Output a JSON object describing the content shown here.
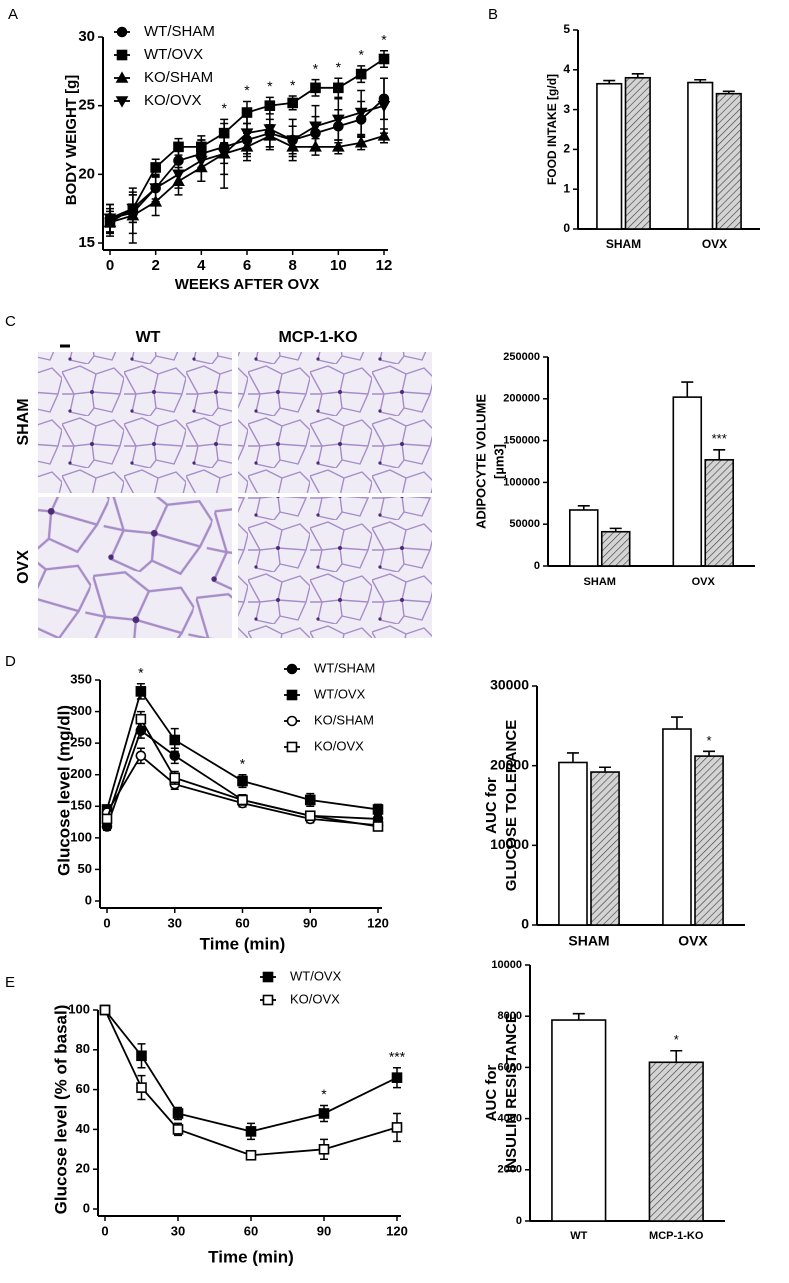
{
  "micrographs": {
    "panel": "C",
    "columns": [
      "WT",
      "MCP-1-KO"
    ],
    "rows": [
      "SHAM",
      "OVX"
    ]
  },
  "chart_data": [
    {
      "type": "line",
      "panel": "A",
      "xlabel": "WEEKS AFTER OVX",
      "ylabel": "BODY WEIGHT [g]",
      "x": [
        0,
        1,
        2,
        3,
        4,
        5,
        6,
        7,
        8,
        9,
        10,
        11,
        12
      ],
      "xlim": [
        0,
        12
      ],
      "xticks": [
        0,
        2,
        4,
        6,
        8,
        10,
        12
      ],
      "ylim": [
        15,
        30
      ],
      "yticks": [
        15,
        20,
        25,
        30
      ],
      "legend": "top-left",
      "annotations": [
        null,
        null,
        null,
        null,
        null,
        "*",
        "*",
        "*",
        "*",
        "*",
        "*",
        "*",
        "*"
      ],
      "series": [
        {
          "name": "WT/SHAM",
          "color": "#000000",
          "marker": "circle",
          "filled": true,
          "values": [
            16.8,
            17.2,
            19,
            21,
            21.5,
            22,
            22.5,
            23,
            22.5,
            23,
            23.5,
            24,
            25.5
          ],
          "errors": [
            1,
            1.5,
            0.8,
            0.8,
            1,
            1.2,
            1.2,
            1,
            1,
            1.2,
            1.2,
            1.3,
            1.5
          ]
        },
        {
          "name": "WT/OVX",
          "color": "#000000",
          "marker": "square",
          "filled": true,
          "values": [
            16.5,
            17.5,
            20.5,
            22,
            22,
            23,
            24.5,
            25,
            25.2,
            26.3,
            26.3,
            27.3,
            28.4
          ],
          "errors": [
            1,
            1,
            0.6,
            0.6,
            0.8,
            0.7,
            0.8,
            0.6,
            0.5,
            0.6,
            0.7,
            0.6,
            0.6
          ]
        },
        {
          "name": "KO/SHAM",
          "color": "#000000",
          "marker": "triangle",
          "filled": true,
          "values": [
            16.5,
            17,
            18,
            19.5,
            20.5,
            21.5,
            22,
            22.8,
            22,
            22,
            22,
            22.3,
            22.8
          ],
          "errors": [
            0.8,
            2,
            1,
            1,
            1,
            1.5,
            1,
            0.8,
            0.7,
            0.6,
            0.5,
            0.5,
            0.5
          ]
        },
        {
          "name": "KO/OVX",
          "color": "#000000",
          "marker": "triangle-down",
          "filled": true,
          "values": [
            16.8,
            17.5,
            19,
            20,
            21,
            21.5,
            23,
            23.3,
            22.5,
            23.5,
            24,
            24.5,
            25
          ],
          "errors": [
            1,
            1,
            1,
            1,
            1.5,
            2.5,
            1.5,
            1.5,
            1.5,
            1.5,
            1.5,
            1.6,
            2
          ]
        }
      ]
    },
    {
      "type": "bar",
      "panel": "B",
      "ylabel": "FOOD INTAKE [g/d]",
      "categories": [
        "SHAM",
        "OVX"
      ],
      "ylim": [
        0,
        5
      ],
      "yticks": [
        0,
        1,
        2,
        3,
        4,
        5
      ],
      "series": [
        {
          "color": "#ffffff",
          "hatch": false,
          "values": [
            3.65,
            3.68
          ],
          "errors": [
            0.08,
            0.07
          ]
        },
        {
          "color": "#d4d4d4",
          "hatch": true,
          "values": [
            3.8,
            3.4
          ],
          "errors": [
            0.1,
            0.06
          ]
        }
      ]
    },
    {
      "type": "bar",
      "ylabel": [
        "ADIPOCYTE VOLUME",
        "[µm3]"
      ],
      "categories": [
        "SHAM",
        "OVX"
      ],
      "ylim": [
        0,
        250000
      ],
      "yticks": [
        0,
        50000,
        100000,
        150000,
        200000,
        250000
      ],
      "series": [
        {
          "color": "#ffffff",
          "hatch": false,
          "values": [
            67000,
            202000
          ],
          "errors": [
            5000,
            18000
          ]
        },
        {
          "color": "#d4d4d4",
          "hatch": true,
          "values": [
            41000,
            127000
          ],
          "errors": [
            4000,
            12000
          ],
          "annotations": [
            null,
            "***"
          ]
        }
      ]
    },
    {
      "type": "line",
      "panel": "D",
      "xlabel": "Time (min)",
      "ylabel": "Glucose level (mg/dl)",
      "x": [
        0,
        15,
        30,
        60,
        90,
        120
      ],
      "xlim": [
        0,
        120
      ],
      "xticks": [
        0,
        30,
        60,
        90,
        120
      ],
      "ylim": [
        0,
        350
      ],
      "yticks": [
        0,
        50,
        100,
        150,
        200,
        250,
        300,
        350
      ],
      "legend": "top-right",
      "annotations": [
        null,
        "*",
        null,
        "*",
        null,
        null
      ],
      "series": [
        {
          "name": "WT/SHAM",
          "color": "#000000",
          "marker": "circle",
          "filled": true,
          "values": [
            118,
            270,
            230,
            160,
            135,
            130
          ],
          "errors": [
            6,
            12,
            12,
            8,
            6,
            6
          ]
        },
        {
          "name": "WT/OVX",
          "color": "#000000",
          "marker": "square",
          "filled": true,
          "values": [
            145,
            332,
            255,
            190,
            160,
            145
          ],
          "errors": [
            6,
            12,
            18,
            10,
            10,
            8
          ]
        },
        {
          "name": "KO/SHAM",
          "color": "#000000",
          "marker": "circle",
          "filled": false,
          "values": [
            140,
            230,
            185,
            155,
            130,
            120
          ],
          "errors": [
            6,
            12,
            8,
            6,
            6,
            6
          ]
        },
        {
          "name": "KO/OVX",
          "color": "#000000",
          "marker": "square",
          "filled": false,
          "values": [
            130,
            288,
            195,
            160,
            135,
            118
          ],
          "errors": [
            6,
            12,
            10,
            8,
            6,
            6
          ]
        }
      ]
    },
    {
      "type": "bar",
      "ylabel": [
        "AUC for",
        "GLUCOSE TOLERANCE"
      ],
      "categories": [
        "SHAM",
        "OVX"
      ],
      "ylim": [
        0,
        30000
      ],
      "yticks": [
        0,
        10000,
        20000,
        30000
      ],
      "series": [
        {
          "color": "#ffffff",
          "hatch": false,
          "values": [
            20400,
            24600
          ],
          "errors": [
            1200,
            1500
          ]
        },
        {
          "color": "#d4d4d4",
          "hatch": true,
          "values": [
            19200,
            21200
          ],
          "errors": [
            600,
            600
          ],
          "annotations": [
            null,
            "*"
          ]
        }
      ]
    },
    {
      "type": "line",
      "panel": "E",
      "xlabel": "Time (min)",
      "ylabel": "Glucose level (% of basal)",
      "x": [
        0,
        15,
        30,
        60,
        90,
        120
      ],
      "xlim": [
        0,
        120
      ],
      "xticks": [
        0,
        30,
        60,
        90,
        120
      ],
      "ylim": [
        0,
        100
      ],
      "yticks": [
        0,
        20,
        40,
        60,
        80,
        100
      ],
      "legend": "top-right",
      "annotations": [
        null,
        null,
        null,
        null,
        "*",
        "***"
      ],
      "series": [
        {
          "name": "WT/OVX",
          "color": "#000000",
          "marker": "square",
          "filled": true,
          "values": [
            100,
            77,
            48,
            39,
            48,
            66
          ],
          "errors": [
            2,
            6,
            3,
            4,
            4,
            5
          ]
        },
        {
          "name": "KO/OVX",
          "color": "#000000",
          "marker": "square",
          "filled": false,
          "values": [
            100,
            61,
            40,
            27,
            30,
            41
          ],
          "errors": [
            2,
            6,
            3,
            2,
            5,
            7
          ]
        }
      ]
    },
    {
      "type": "bar",
      "ylabel": [
        "AUC for",
        "INSULIN RESISTANCE"
      ],
      "categories": [
        "WT",
        "MCP-1-KO"
      ],
      "ylim": [
        0,
        10000
      ],
      "yticks": [
        0,
        2000,
        4000,
        6000,
        8000,
        10000
      ],
      "series": [
        {
          "colors": [
            "#ffffff",
            "#d4d4d4"
          ],
          "hatch": [
            false,
            true
          ],
          "values": [
            7850,
            6200
          ],
          "errors": [
            250,
            450
          ],
          "annotations": [
            null,
            "*"
          ]
        }
      ]
    }
  ]
}
